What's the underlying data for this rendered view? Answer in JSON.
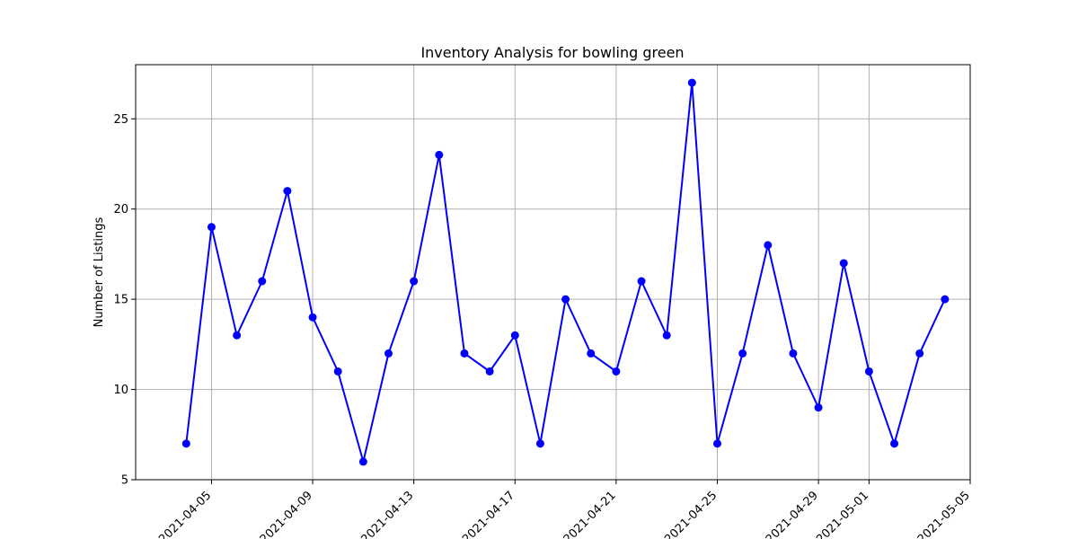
{
  "chart_data": {
    "type": "line",
    "title": "Inventory Analysis for bowling green",
    "xlabel": "",
    "ylabel": "Number of Listings",
    "x": [
      "2021-04-04",
      "2021-04-05",
      "2021-04-06",
      "2021-04-07",
      "2021-04-08",
      "2021-04-09",
      "2021-04-10",
      "2021-04-11",
      "2021-04-12",
      "2021-04-13",
      "2021-04-14",
      "2021-04-15",
      "2021-04-16",
      "2021-04-17",
      "2021-04-18",
      "2021-04-19",
      "2021-04-20",
      "2021-04-21",
      "2021-04-22",
      "2021-04-23",
      "2021-04-24",
      "2021-04-25",
      "2021-04-26",
      "2021-04-27",
      "2021-04-28",
      "2021-04-29",
      "2021-04-30",
      "2021-05-01",
      "2021-05-02",
      "2021-05-03",
      "2021-05-04"
    ],
    "series": [
      {
        "values": [
          7,
          19,
          13,
          16,
          21,
          14,
          11,
          6,
          12,
          16,
          23,
          12,
          11,
          13,
          7,
          15,
          12,
          11,
          16,
          13,
          27,
          7,
          12,
          18,
          12,
          9,
          17,
          11,
          7,
          12,
          15
        ],
        "color": "#0000ff",
        "marker": "circle"
      }
    ],
    "xlim": [
      "2021-04-02",
      "2021-05-05"
    ],
    "ylim": [
      5,
      28
    ],
    "x_ticks": [
      "2021-04-05",
      "2021-04-09",
      "2021-04-13",
      "2021-04-17",
      "2021-04-21",
      "2021-04-25",
      "2021-04-29",
      "2021-05-01",
      "2021-05-05"
    ],
    "y_ticks": [
      5,
      10,
      15,
      20,
      25
    ],
    "grid": true,
    "legend": "none"
  }
}
